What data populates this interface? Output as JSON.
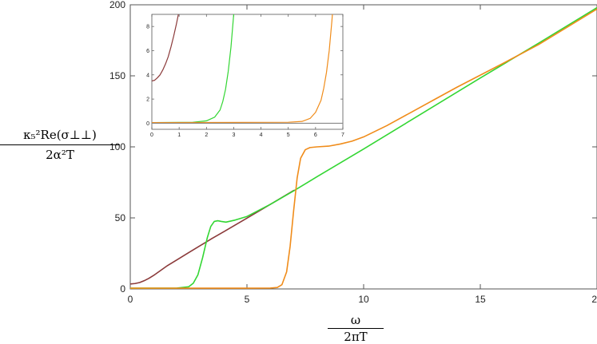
{
  "chart_data": [
    {
      "type": "line",
      "role": "main",
      "xlabel_num": "ω",
      "xlabel_den": "2πT",
      "ylabel_num": "κ₅²Re(σ⊥⊥)",
      "ylabel_den": "2α²T",
      "xlim": [
        0,
        20
      ],
      "ylim": [
        0,
        200
      ],
      "xticks": [
        0,
        5,
        10,
        15,
        20
      ],
      "yticks": [
        0,
        50,
        100,
        150,
        200
      ],
      "grid": false,
      "series": [
        {
          "color": "#8b3a3a",
          "x": [
            0,
            0.2,
            0.4,
            0.6,
            0.8,
            1.0,
            1.3,
            1.6,
            2.0,
            2.5,
            3.0,
            3.5,
            4.0,
            5.0,
            6.0,
            7.0
          ],
          "y": [
            3.5,
            3.8,
            4.5,
            5.8,
            7.5,
            9.5,
            13,
            16.5,
            20.5,
            25.5,
            30.5,
            35.5,
            40.2,
            49.8,
            59.5,
            69.3
          ]
        },
        {
          "color": "#33d633",
          "x": [
            0,
            2.0,
            2.5,
            2.7,
            2.9,
            3.1,
            3.3,
            3.45,
            3.6,
            3.75,
            3.9,
            4.1,
            4.5,
            5.0,
            6.0,
            7.0,
            8.0,
            10.0,
            12.0,
            15.0,
            17.5,
            20.0
          ],
          "y": [
            0.5,
            0.6,
            1.5,
            4,
            10,
            22,
            36,
            44,
            47.5,
            48,
            47.5,
            47,
            48.5,
            51,
            59.5,
            69,
            79,
            98.5,
            118.5,
            148.5,
            173,
            198
          ]
        },
        {
          "color": "#f08c1a",
          "x": [
            0,
            5.0,
            6.0,
            6.3,
            6.5,
            6.7,
            6.85,
            7.0,
            7.15,
            7.3,
            7.5,
            7.7,
            8.0,
            8.5,
            9.0,
            9.5,
            10.0,
            11.0,
            12.0,
            13.0,
            14.0,
            15.0,
            16.0,
            17.5,
            20.0
          ],
          "y": [
            0.5,
            0.5,
            0.6,
            1,
            3,
            12,
            30,
            55,
            78,
            92,
            98,
            99.5,
            100,
            100.5,
            102,
            104,
            107,
            115,
            124,
            133,
            142,
            150.5,
            159,
            172,
            197
          ]
        }
      ]
    },
    {
      "type": "line",
      "role": "inset",
      "xlim": [
        0,
        7
      ],
      "ylim": [
        -0.5,
        9
      ],
      "xticks": [
        0,
        1,
        2,
        3,
        4,
        5,
        6,
        7
      ],
      "yticks": [
        0,
        2,
        4,
        6,
        8
      ],
      "grid": false,
      "series": [
        {
          "color": "#8b3a3a",
          "x": [
            0,
            0.1,
            0.2,
            0.3,
            0.4,
            0.5,
            0.6,
            0.7,
            0.8,
            0.9,
            1.0,
            1.1
          ],
          "y": [
            3.5,
            3.55,
            3.75,
            4.0,
            4.4,
            4.9,
            5.5,
            6.3,
            7.2,
            8.2,
            9.3,
            10.5
          ]
        },
        {
          "color": "#33d633",
          "x": [
            0,
            1.5,
            2.0,
            2.3,
            2.5,
            2.6,
            2.7,
            2.8,
            2.9,
            3.0,
            3.1
          ],
          "y": [
            0.05,
            0.08,
            0.2,
            0.5,
            1.1,
            1.8,
            2.8,
            4.3,
            6.3,
            9.0,
            12
          ]
        },
        {
          "color": "#f08c1a",
          "x": [
            0,
            5.0,
            5.5,
            5.8,
            6.0,
            6.2,
            6.3,
            6.4,
            6.5,
            6.6,
            6.7
          ],
          "y": [
            0.05,
            0.08,
            0.15,
            0.4,
            0.9,
            1.9,
            2.9,
            4.2,
            6.0,
            8.5,
            11.5
          ]
        },
        {
          "color": "#888888",
          "x": [
            0,
            7
          ],
          "y": [
            0,
            0
          ]
        }
      ]
    }
  ]
}
